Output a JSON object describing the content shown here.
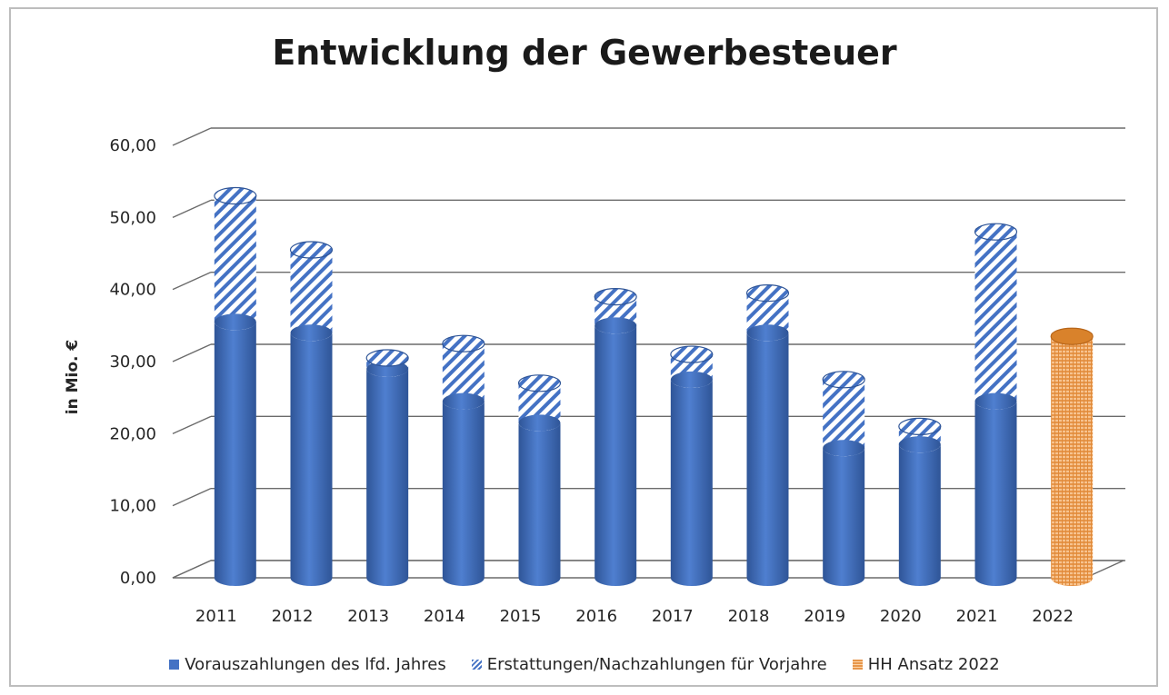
{
  "chart_data": {
    "type": "bar",
    "title": "Entwicklung der Gewerbesteuer",
    "ylabel": "in Mio. €",
    "xlabel": "",
    "ylim": [
      0,
      60
    ],
    "yticks": [
      "0,00",
      "10,00",
      "20,00",
      "30,00",
      "40,00",
      "50,00",
      "60,00"
    ],
    "categories": [
      "2011",
      "2012",
      "2013",
      "2014",
      "2015",
      "2016",
      "2017",
      "2018",
      "2019",
      "2020",
      "2021",
      "2022"
    ],
    "stacked": true,
    "grid": true,
    "legend_position": "bottom",
    "series": [
      {
        "name": "Vorauszahlungen des lfd. Jahres",
        "color": "#4472c4",
        "values": [
          35.5,
          34.0,
          29.0,
          24.5,
          21.5,
          35.0,
          27.5,
          34.0,
          18.0,
          18.5,
          24.5,
          null
        ]
      },
      {
        "name": "Erstattungen/Nachzahlungen für Vorjahre",
        "color": "#4472c4",
        "pattern": "hatch",
        "values": [
          17.5,
          11.5,
          1.5,
          8.0,
          5.5,
          4.0,
          3.5,
          5.5,
          9.5,
          2.5,
          23.5,
          null
        ]
      },
      {
        "name": "HH Ansatz 2022",
        "color": "#e7964a",
        "pattern": "grid",
        "values": [
          null,
          null,
          null,
          null,
          null,
          null,
          null,
          null,
          null,
          null,
          null,
          33.5
        ]
      }
    ]
  }
}
